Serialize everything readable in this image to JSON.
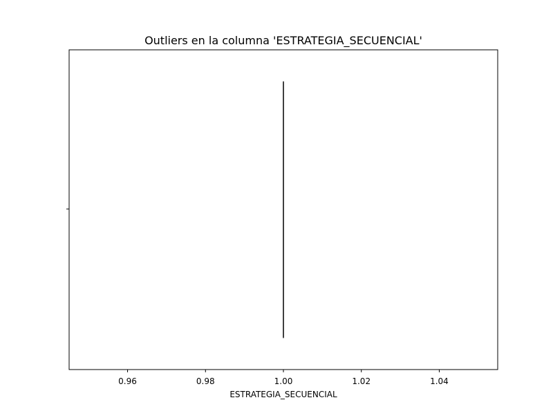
{
  "chart_data": {
    "type": "box",
    "title": "Outliers en la columna 'ESTRATEGIA_SECUENCIAL'",
    "xlabel": "ESTRATEGIA_SECUENCIAL",
    "ylabel": "",
    "xlim": [
      0.945,
      1.055
    ],
    "x_ticks": [
      0.96,
      0.98,
      1.0,
      1.02,
      1.04
    ],
    "x_tick_labels": [
      "0.96",
      "0.98",
      "1.00",
      "1.02",
      "1.04"
    ],
    "orientation": "horizontal",
    "grid": false,
    "legend": "none",
    "series": [
      {
        "min": 1.0,
        "q1": 1.0,
        "median": 1.0,
        "q3": 1.0,
        "max": 1.0,
        "outliers": []
      }
    ],
    "colors": {
      "box_line": "#3f3f3f",
      "frame": "#000000"
    }
  }
}
